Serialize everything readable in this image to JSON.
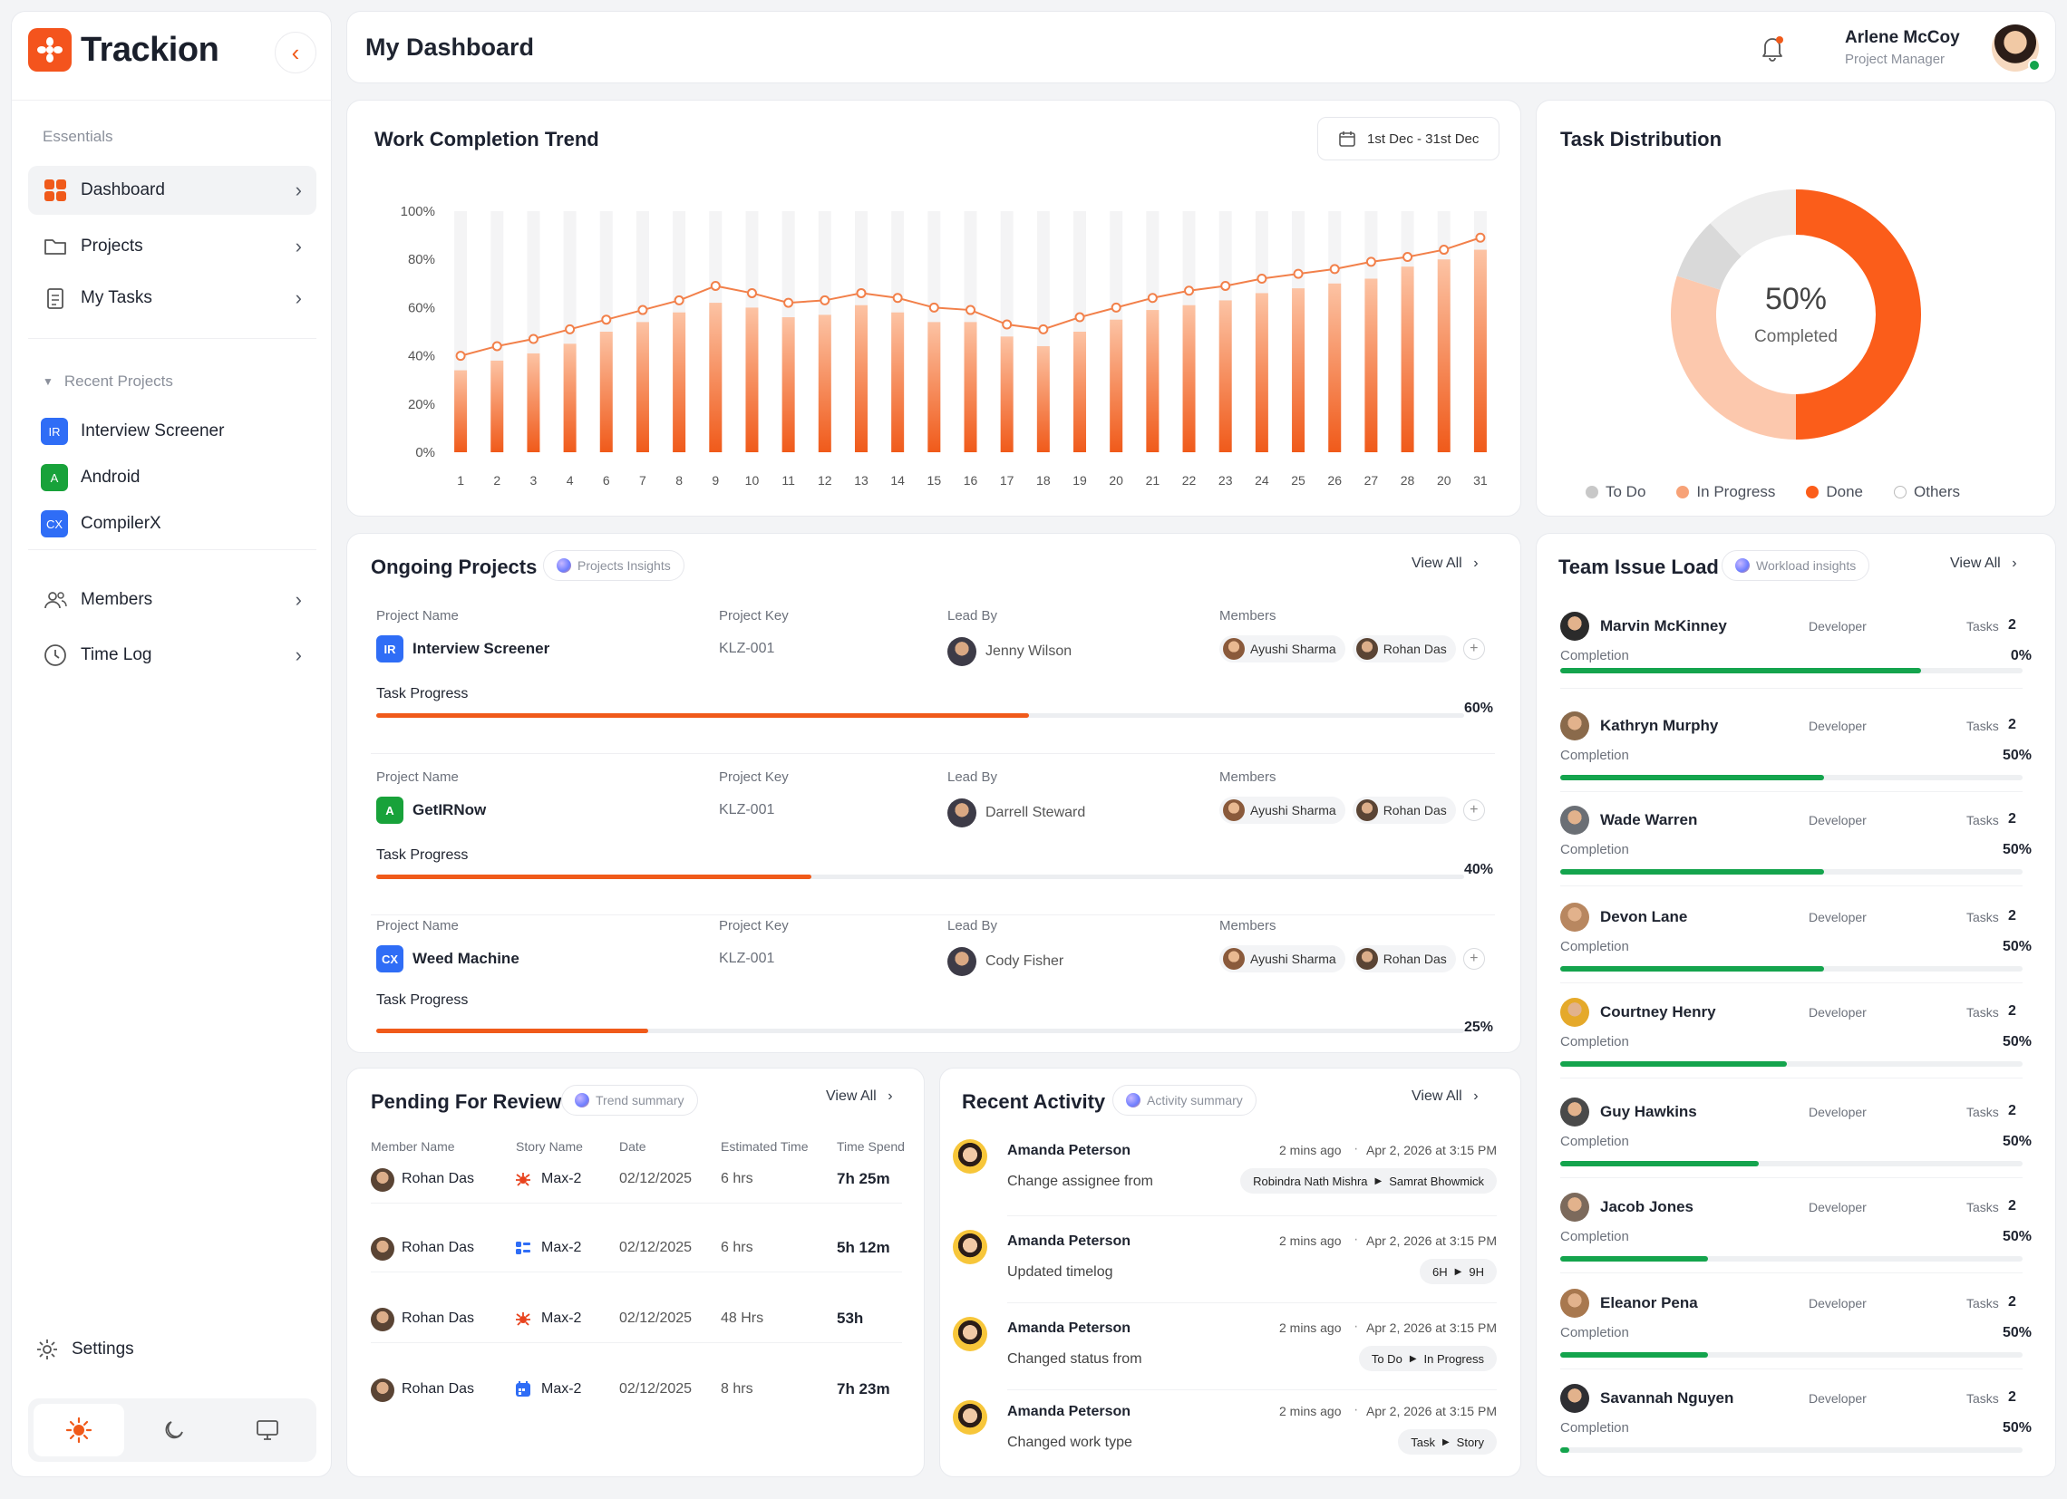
{
  "app": {
    "name": "Trackion"
  },
  "sidebar": {
    "section_label": "Essentials",
    "nav": [
      {
        "label": "Dashboard",
        "icon": "dashboard-icon",
        "active": true
      },
      {
        "label": "Projects",
        "icon": "folder-icon"
      },
      {
        "label": "My Tasks",
        "icon": "tasks-icon"
      }
    ],
    "recent_label": "Recent Projects",
    "recent": [
      {
        "badge": "IR",
        "label": "Interview Screener",
        "color": "#2f6df6"
      },
      {
        "badge": "A",
        "label": "Android",
        "color": "#18a23a"
      },
      {
        "badge": "CX",
        "label": "CompilerX",
        "color": "#2f6df6"
      }
    ],
    "bottom_nav": [
      {
        "label": "Members",
        "icon": "members-icon"
      },
      {
        "label": "Time Log",
        "icon": "clock-icon"
      }
    ],
    "settings_label": "Settings",
    "theme_active": "light"
  },
  "header": {
    "title": "My Dashboard",
    "user_name": "Arlene McCoy",
    "user_role": "Project Manager"
  },
  "trend": {
    "title": "Work Completion Trend",
    "date_range": "1st Dec - 31st Dec"
  },
  "chart_data": {
    "type": "bar",
    "categories": [
      "1",
      "2",
      "3",
      "4",
      "6",
      "7",
      "8",
      "9",
      "10",
      "11",
      "12",
      "13",
      "14",
      "15",
      "16",
      "17",
      "18",
      "19",
      "20",
      "21",
      "22",
      "23",
      "24",
      "25",
      "26",
      "27",
      "28",
      "20",
      "31"
    ],
    "values": [
      34,
      38,
      41,
      45,
      50,
      54,
      58,
      62,
      60,
      56,
      57,
      61,
      58,
      54,
      54,
      48,
      44,
      50,
      55,
      59,
      61,
      63,
      66,
      68,
      70,
      72,
      77,
      80,
      84
    ],
    "line_values": [
      40,
      44,
      47,
      51,
      55,
      59,
      63,
      69,
      66,
      62,
      63,
      66,
      64,
      60,
      59,
      53,
      51,
      56,
      60,
      64,
      67,
      69,
      72,
      74,
      76,
      79,
      81,
      84,
      89
    ],
    "ylim": [
      0,
      100
    ],
    "yticks": [
      "100%",
      "80%",
      "60%",
      "40%",
      "20%",
      "0%"
    ],
    "grid": false,
    "colors": {
      "bar": "#f05a1a",
      "line": "#f2804a",
      "track": "#f4f4f5"
    }
  },
  "distribution": {
    "title": "Task Distribution",
    "center_value": "50%",
    "center_label": "Completed",
    "segments": [
      {
        "name": "Done",
        "value": 50,
        "color": "#fb5d1a"
      },
      {
        "name": "In Progress",
        "value": 30,
        "color": "#fcc8ad"
      },
      {
        "name": "To Do",
        "value": 8,
        "color": "#d9d9d9"
      },
      {
        "name": "Others",
        "value": 12,
        "color": "#ededed"
      }
    ],
    "legend": [
      {
        "name": "To Do",
        "color": "#c8c8c8"
      },
      {
        "name": "In Progress",
        "color": "#f7a277"
      },
      {
        "name": "Done",
        "color": "#fb5d1a"
      },
      {
        "name": "Others",
        "color": "#ffffff"
      }
    ]
  },
  "ongoing": {
    "title": "Ongoing Projects",
    "chip": "Projects Insights",
    "view_all": "View All",
    "col_name": "Project Name",
    "col_key": "Project Key",
    "col_lead": "Lead By",
    "col_members": "Members",
    "progress_label": "Task Progress",
    "projects": [
      {
        "badge": "IR",
        "badge_color": "#2f6df6",
        "name": "Interview Screener",
        "key": "KLZ-001",
        "lead": "Jenny Wilson",
        "members": [
          "Ayushi Sharma",
          "Rohan Das"
        ],
        "progress": "60%",
        "progress_value": 0.6
      },
      {
        "badge": "A",
        "badge_color": "#18a23a",
        "name": "GetIRNow",
        "key": "KLZ-001",
        "lead": "Darrell Steward",
        "members": [
          "Ayushi Sharma",
          "Rohan Das"
        ],
        "progress": "40%",
        "progress_value": 0.4
      },
      {
        "badge": "CX",
        "badge_color": "#2f6df6",
        "name": "Weed Machine",
        "key": "KLZ-001",
        "lead": "Cody Fisher",
        "members": [
          "Ayushi Sharma",
          "Rohan Das"
        ],
        "progress": "25%",
        "progress_value": 0.25
      }
    ]
  },
  "team": {
    "title": "Team Issue Load",
    "chip": "Workload insights",
    "view_all": "View All",
    "completion_label": "Completion",
    "tasks_label": "Tasks",
    "members": [
      {
        "name": "Marvin McKinney",
        "role": "Developer",
        "tasks": "2",
        "completion": "0%",
        "bar": 0.78
      },
      {
        "name": "Kathryn Murphy",
        "role": "Developer",
        "tasks": "2",
        "completion": "50%",
        "bar": 0.57
      },
      {
        "name": "Wade Warren",
        "role": "Developer",
        "tasks": "2",
        "completion": "50%",
        "bar": 0.57
      },
      {
        "name": "Devon Lane",
        "role": "Developer",
        "tasks": "2",
        "completion": "50%",
        "bar": 0.57
      },
      {
        "name": "Courtney Henry",
        "role": "Developer",
        "tasks": "2",
        "completion": "50%",
        "bar": 0.49
      },
      {
        "name": "Guy Hawkins",
        "role": "Developer",
        "tasks": "2",
        "completion": "50%",
        "bar": 0.43
      },
      {
        "name": "Jacob Jones",
        "role": "Developer",
        "tasks": "2",
        "completion": "50%",
        "bar": 0.32
      },
      {
        "name": "Eleanor Pena",
        "role": "Developer",
        "tasks": "2",
        "completion": "50%",
        "bar": 0.32
      },
      {
        "name": "Savannah Nguyen",
        "role": "Developer",
        "tasks": "2",
        "completion": "50%",
        "bar": 0.02
      }
    ]
  },
  "review": {
    "title": "Pending For Review",
    "chip": "Trend summary",
    "view_all": "View All",
    "columns": [
      "Member Name",
      "Story Name",
      "Date",
      "Estimated Time",
      "Time Spend"
    ],
    "rows": [
      {
        "member": "Rohan Das",
        "story": "Max-2",
        "icon": "bug-icon",
        "icon_color": "#e8431e",
        "date": "02/12/2025",
        "estimate": "6 hrs",
        "spent": "7h 25m"
      },
      {
        "member": "Rohan Das",
        "story": "Max-2",
        "icon": "list-icon",
        "icon_color": "#2f6df6",
        "date": "02/12/2025",
        "estimate": "6 hrs",
        "spent": "5h 12m"
      },
      {
        "member": "Rohan Das",
        "story": "Max-2",
        "icon": "bug-icon",
        "icon_color": "#e8431e",
        "date": "02/12/2025",
        "estimate": "48 Hrs",
        "spent": "53h"
      },
      {
        "member": "Rohan Das",
        "story": "Max-2",
        "icon": "calendar-icon",
        "icon_color": "#2f6df6",
        "date": "02/12/2025",
        "estimate": "8 hrs",
        "spent": "7h 23m"
      }
    ]
  },
  "activity": {
    "title": "Recent Activity",
    "chip": "Activity summary",
    "view_all": "View All",
    "items": [
      {
        "user": "Amanda Peterson",
        "ago": "2 mins ago",
        "date": "Apr 2, 2026 at 3:15 PM",
        "text": "Change assignee from",
        "from": "Robindra Nath Mishra",
        "to": "Samrat Bhowmick"
      },
      {
        "user": "Amanda Peterson",
        "ago": "2 mins ago",
        "date": "Apr 2, 2026 at 3:15 PM",
        "text": "Updated timelog",
        "from": "6H",
        "to": "9H"
      },
      {
        "user": "Amanda Peterson",
        "ago": "2 mins ago",
        "date": "Apr 2, 2026 at 3:15 PM",
        "text": "Changed status from",
        "from": "To Do",
        "to": "In Progress"
      },
      {
        "user": "Amanda Peterson",
        "ago": "2 mins ago",
        "date": "Apr 2, 2026 at 3:15 PM",
        "text": "Changed work type",
        "from": "Task",
        "to": "Story"
      }
    ]
  }
}
